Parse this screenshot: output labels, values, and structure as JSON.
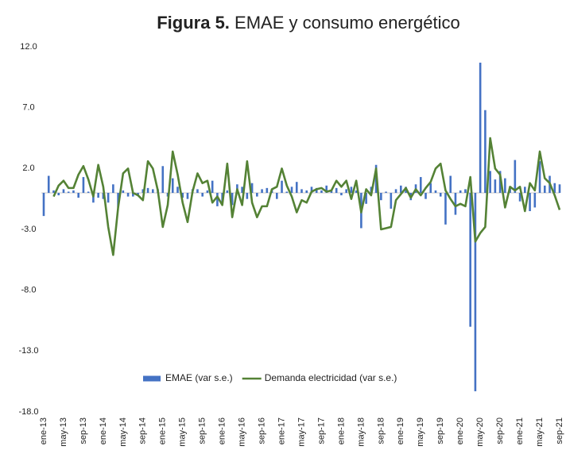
{
  "chart_data": {
    "type": "bar",
    "title_label": "Figura 5.",
    "title": "EMAE y consumo energético",
    "categories": [
      "ene-13",
      null,
      null,
      null,
      "may-13",
      null,
      null,
      null,
      "sep-13",
      null,
      null,
      null,
      "ene-14",
      null,
      null,
      null,
      "may-14",
      null,
      null,
      null,
      "sep-14",
      null,
      null,
      null,
      "ene-15",
      null,
      null,
      null,
      "may-15",
      null,
      null,
      null,
      "sep-15",
      null,
      null,
      null,
      "ene-16",
      null,
      null,
      null,
      "may-16",
      null,
      null,
      null,
      "sep-16",
      null,
      null,
      null,
      "ene-17",
      null,
      null,
      null,
      "may-17",
      null,
      null,
      null,
      "sep-17",
      null,
      null,
      null,
      "ene-18",
      null,
      null,
      null,
      "may-18",
      null,
      null,
      null,
      "sep-18",
      null,
      null,
      null,
      "ene-19",
      null,
      null,
      null,
      "may-19",
      null,
      null,
      null,
      "sep-19",
      null,
      null,
      null,
      "ene-20",
      null,
      null,
      null,
      "may-20",
      null,
      null,
      null,
      "sep-20",
      null,
      null,
      null,
      "ene-21",
      null,
      null,
      null,
      "may-21",
      null,
      null,
      null,
      "sep-21"
    ],
    "series": [
      {
        "name": "EMAE (var s.e.)",
        "type": "bar",
        "color": "#4472c4",
        "values": [
          -1.9,
          1.4,
          0.2,
          -0.2,
          0.3,
          0.1,
          0.2,
          -0.4,
          1.3,
          0.1,
          -0.8,
          -0.4,
          -0.5,
          -0.8,
          0.7,
          -1.2,
          0.2,
          -0.3,
          -0.3,
          -0.2,
          0.3,
          0.4,
          0.3,
          0.3,
          2.2,
          -0.3,
          1.2,
          0.5,
          -0.4,
          -0.5,
          0.3,
          0.3,
          -0.3,
          0.2,
          1.0,
          -1.1,
          -1.0,
          0.2,
          -1.0,
          0.7,
          0.5,
          -0.5,
          0.8,
          -0.3,
          0.3,
          0.4,
          0.3,
          -0.5,
          1.0,
          0.1,
          0.5,
          0.9,
          0.3,
          0.2,
          0.5,
          0.4,
          0.2,
          0.6,
          0.2,
          0.4,
          -0.2,
          0.3,
          0.5,
          0.2,
          -2.9,
          -0.9,
          0.5,
          2.3,
          -0.6,
          0.1,
          -1.3,
          0.3,
          0.6,
          0.5,
          -0.6,
          0.7,
          1.3,
          -0.5,
          0.8,
          0.2,
          -0.3,
          -2.6,
          1.4,
          -1.8,
          0.2,
          0.3,
          -11.0,
          -16.3,
          10.7,
          6.8,
          1.8,
          1.1,
          1.8,
          1.2,
          0.5,
          2.7,
          -0.7,
          0.5,
          -1.5,
          -1.2,
          2.6,
          0.6,
          1.4,
          0.8,
          0.7
        ]
      },
      {
        "name": "Demanda electricidad (var s.e.)",
        "type": "line",
        "color": "#548235",
        "values": [
          null,
          null,
          -0.3,
          0.6,
          1.0,
          0.4,
          0.4,
          1.5,
          2.2,
          1.1,
          -0.3,
          2.3,
          0.5,
          -2.8,
          -5.1,
          -1.2,
          1.6,
          2.0,
          0.0,
          -0.2,
          -0.6,
          2.6,
          2.0,
          0.2,
          -2.8,
          -1.0,
          3.4,
          1.5,
          -0.8,
          -2.4,
          0.1,
          1.6,
          0.8,
          1.0,
          -0.8,
          -0.3,
          -1.0,
          2.4,
          -2.0,
          0.3,
          -1.0,
          2.6,
          -0.8,
          -2.0,
          -1.1,
          -1.1,
          0.3,
          0.5,
          2.0,
          0.6,
          -0.3,
          -1.6,
          -0.6,
          -0.8,
          0.1,
          0.3,
          0.4,
          0.1,
          0.2,
          1.0,
          0.5,
          1.0,
          -0.5,
          1.0,
          -1.6,
          0.3,
          -0.2,
          2.0,
          -3.0,
          -2.9,
          -2.8,
          -0.6,
          -0.1,
          0.4,
          -0.4,
          0.3,
          -0.2,
          0.4,
          0.9,
          2.0,
          2.4,
          0.2,
          -0.5,
          -1.1,
          -0.9,
          -1.1,
          1.3,
          -4.0,
          -3.3,
          -2.8,
          4.5,
          2.0,
          1.5,
          -1.2,
          0.5,
          0.2,
          0.5,
          -1.5,
          0.8,
          0.2,
          3.4,
          1.2,
          0.8,
          -0.2,
          -1.4
        ]
      }
    ],
    "ylim": [
      -18,
      12
    ],
    "yticks": [
      {
        "value": -18,
        "label": "-18.0"
      },
      {
        "value": -13,
        "label": "-13.0"
      },
      {
        "value": -8,
        "label": "-8.0"
      },
      {
        "value": -3,
        "label": "-3.0"
      },
      {
        "value": 2,
        "label": "2.0"
      },
      {
        "value": 7,
        "label": "7.0"
      },
      {
        "value": 12,
        "label": "12.0"
      }
    ],
    "grid": false,
    "legend": "bottom"
  }
}
